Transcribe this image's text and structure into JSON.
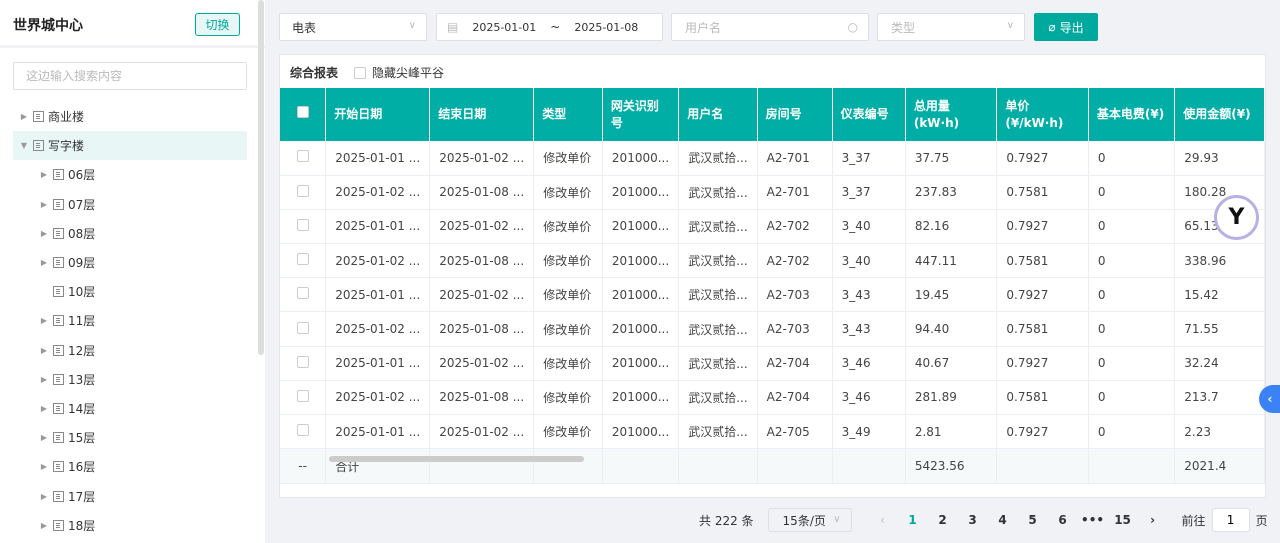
{
  "sidebar": {
    "title": "世界城中心",
    "switch_label": "切换",
    "search_placeholder": "这边输入搜索内容",
    "tree": [
      {
        "label": "商业楼",
        "level": 0,
        "arrow": "right"
      },
      {
        "label": "写字楼",
        "level": 0,
        "arrow": "down",
        "selected": true
      },
      {
        "label": "06层",
        "level": 1,
        "arrow": "right"
      },
      {
        "label": "07层",
        "level": 1,
        "arrow": "right"
      },
      {
        "label": "08层",
        "level": 1,
        "arrow": "right"
      },
      {
        "label": "09层",
        "level": 1,
        "arrow": "right"
      },
      {
        "label": "10层",
        "level": 1,
        "arrow": ""
      },
      {
        "label": "11层",
        "level": 1,
        "arrow": "right"
      },
      {
        "label": "12层",
        "level": 1,
        "arrow": "right"
      },
      {
        "label": "13层",
        "level": 1,
        "arrow": "right"
      },
      {
        "label": "14层",
        "level": 1,
        "arrow": "right"
      },
      {
        "label": "15层",
        "level": 1,
        "arrow": "right"
      },
      {
        "label": "16层",
        "level": 1,
        "arrow": "right"
      },
      {
        "label": "17层",
        "level": 1,
        "arrow": "right"
      },
      {
        "label": "18层",
        "level": 1,
        "arrow": "right"
      }
    ]
  },
  "filters": {
    "meter_type": "电表",
    "date_start": "2025-01-01",
    "date_sep": "~",
    "date_end": "2025-01-08",
    "username_placeholder": "用户名",
    "type_placeholder": "类型",
    "export_label": "导出"
  },
  "panel": {
    "title": "综合报表",
    "hide_peak_label": "隐藏尖峰平谷"
  },
  "table": {
    "columns": [
      "开始日期",
      "结束日期",
      "类型",
      "网关识别号",
      "用户名",
      "房间号",
      "仪表编号",
      "总用量(kW·h)",
      "单价(¥/kW·h)",
      "基本电费(¥)",
      "使用金额(¥)"
    ],
    "rows": [
      [
        "2025-01-01 ...",
        "2025-01-02 ...",
        "修改单价",
        "201000...",
        "武汉贰拾...",
        "A2-701",
        "3_37",
        "37.75",
        "0.7927",
        "0",
        "29.93"
      ],
      [
        "2025-01-02 ...",
        "2025-01-08 ...",
        "修改单价",
        "201000...",
        "武汉贰拾...",
        "A2-701",
        "3_37",
        "237.83",
        "0.7581",
        "0",
        "180.28"
      ],
      [
        "2025-01-01 ...",
        "2025-01-02 ...",
        "修改单价",
        "201000...",
        "武汉贰拾...",
        "A2-702",
        "3_40",
        "82.16",
        "0.7927",
        "0",
        "65.13"
      ],
      [
        "2025-01-02 ...",
        "2025-01-08 ...",
        "修改单价",
        "201000...",
        "武汉贰拾...",
        "A2-702",
        "3_40",
        "447.11",
        "0.7581",
        "0",
        "338.96"
      ],
      [
        "2025-01-01 ...",
        "2025-01-02 ...",
        "修改单价",
        "201000...",
        "武汉贰拾...",
        "A2-703",
        "3_43",
        "19.45",
        "0.7927",
        "0",
        "15.42"
      ],
      [
        "2025-01-02 ...",
        "2025-01-08 ...",
        "修改单价",
        "201000...",
        "武汉贰拾...",
        "A2-703",
        "3_43",
        "94.40",
        "0.7581",
        "0",
        "71.55"
      ],
      [
        "2025-01-01 ...",
        "2025-01-02 ...",
        "修改单价",
        "201000...",
        "武汉贰拾...",
        "A2-704",
        "3_46",
        "40.67",
        "0.7927",
        "0",
        "32.24"
      ],
      [
        "2025-01-02 ...",
        "2025-01-08 ...",
        "修改单价",
        "201000...",
        "武汉贰拾...",
        "A2-704",
        "3_46",
        "281.89",
        "0.7581",
        "0",
        "213.7"
      ],
      [
        "2025-01-01 ...",
        "2025-01-02 ...",
        "修改单价",
        "201000...",
        "武汉贰拾...",
        "A2-705",
        "3_49",
        "2.81",
        "0.7927",
        "0",
        "2.23"
      ]
    ],
    "summary": [
      "--",
      "合计",
      "",
      "",
      "",
      "",
      "",
      "",
      "5423.56",
      "",
      "",
      "2021.4"
    ]
  },
  "pagination": {
    "total": "共 222 条",
    "page_size": "15条/页",
    "pages": [
      "1",
      "2",
      "3",
      "4",
      "5",
      "6",
      "•••",
      "15"
    ],
    "current": "1",
    "goto_label": "前往",
    "goto_value": "1",
    "page_suffix": "页"
  },
  "colors": {
    "accent": "#00aea6",
    "side_tab": "#3b82f6"
  }
}
